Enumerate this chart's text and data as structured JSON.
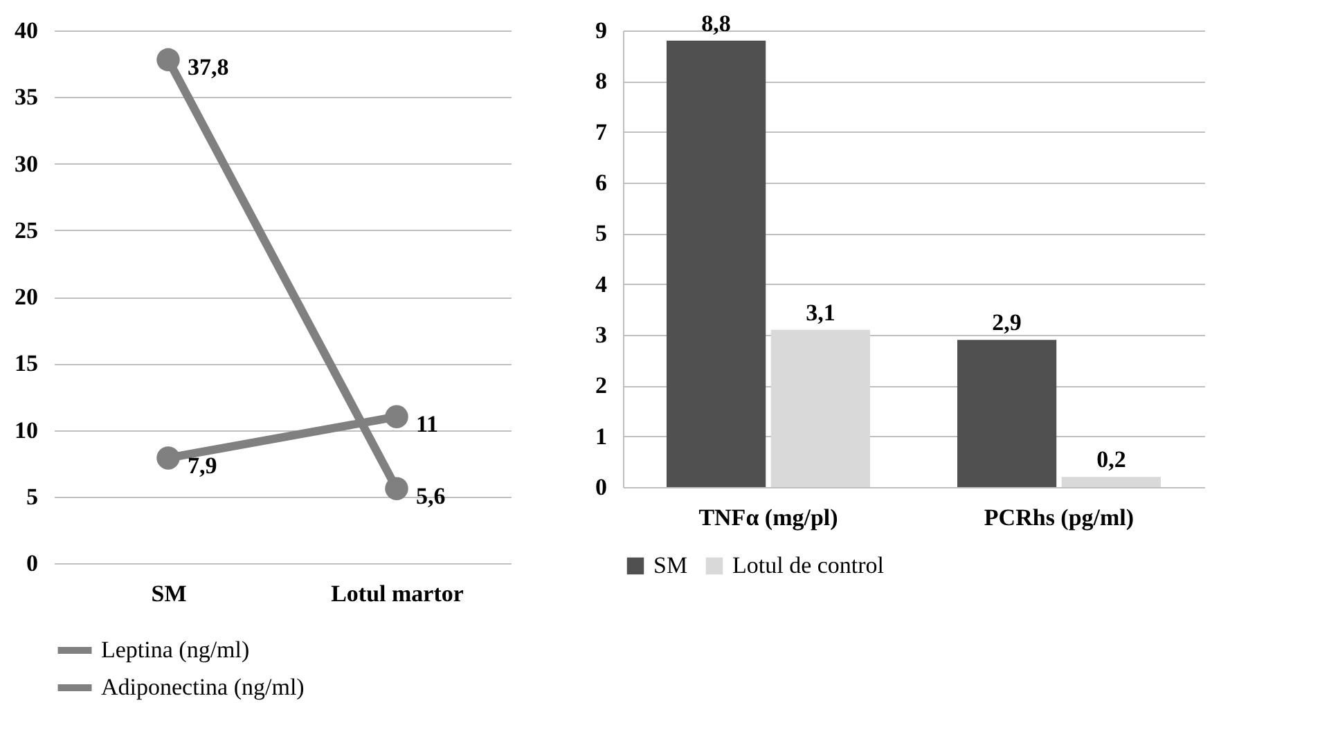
{
  "chart_data": [
    {
      "type": "line",
      "categories": [
        "SM",
        "Lotul martor"
      ],
      "series": [
        {
          "name": "Leptina (ng/ml)",
          "color": "#808080",
          "values": [
            37.8,
            5.6
          ],
          "value_labels": [
            "37,8",
            "5,6"
          ]
        },
        {
          "name": "Adiponectina (ng/ml)",
          "color": "#808080",
          "values": [
            7.9,
            11
          ],
          "value_labels": [
            "7,9",
            "11"
          ]
        }
      ],
      "ylim": [
        0,
        40
      ],
      "yticks": [
        0,
        5,
        10,
        15,
        20,
        25,
        30,
        35,
        40
      ],
      "grid": "y",
      "legend": "bottom",
      "marker": "circle",
      "line_style": "solid"
    },
    {
      "type": "bar",
      "categories": [
        "TNFα (mg/pl)",
        "PCRhs (pg/ml)"
      ],
      "series": [
        {
          "name": "SM",
          "color": "#505050",
          "values": [
            8.8,
            2.9
          ],
          "value_labels": [
            "8,8",
            "2,9"
          ]
        },
        {
          "name": "Lotul de control",
          "color": "#d9d9d9",
          "values": [
            3.1,
            0.2
          ],
          "value_labels": [
            "3,1",
            "0,2"
          ]
        }
      ],
      "ylim": [
        0,
        9
      ],
      "yticks": [
        0,
        1,
        2,
        3,
        4,
        5,
        6,
        7,
        8,
        9
      ],
      "grid": "y",
      "legend": "bottom"
    }
  ]
}
